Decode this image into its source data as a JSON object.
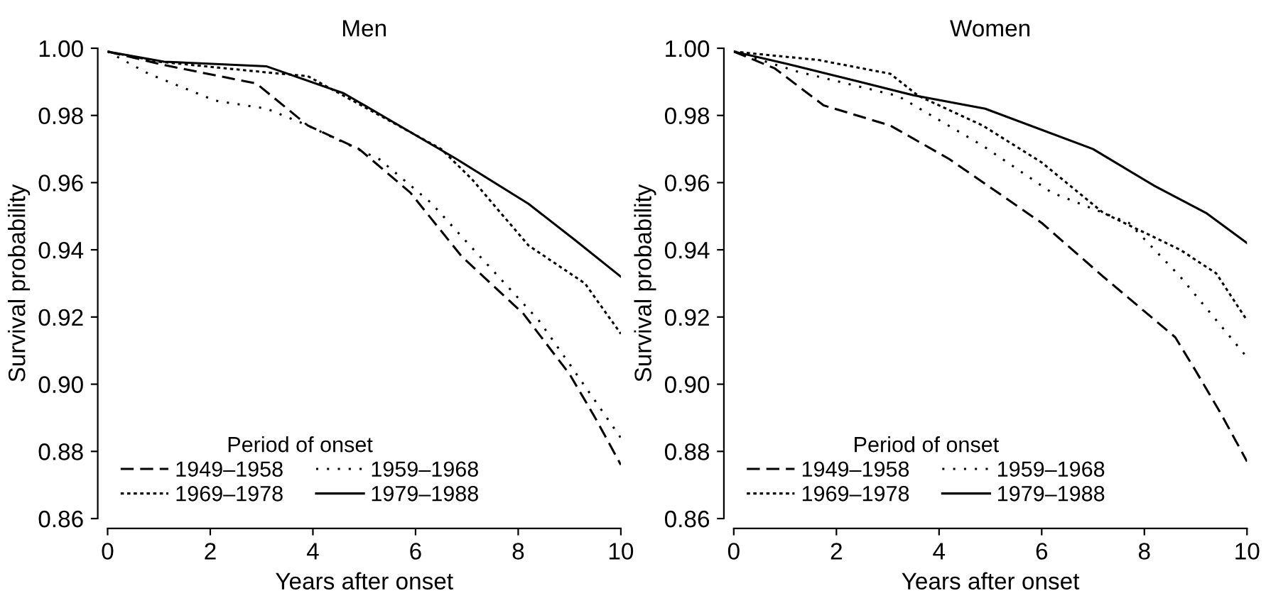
{
  "chart_data": [
    {
      "type": "line",
      "title": "Men",
      "xlabel": "Years after onset",
      "ylabel": "Survival probability",
      "legend_title": "Period of onset",
      "legend": "bottom left",
      "grid": false,
      "xlim": [
        0,
        10
      ],
      "ylim": [
        0.86,
        1.0
      ],
      "xticks": [
        0,
        2,
        4,
        6,
        8,
        10
      ],
      "yticks": [
        {
          "value": 0.86,
          "label": "0.86"
        },
        {
          "value": 0.88,
          "label": "0.88"
        },
        {
          "value": 0.9,
          "label": "0.90"
        },
        {
          "value": 0.92,
          "label": "0.92"
        },
        {
          "value": 0.94,
          "label": "0.94"
        },
        {
          "value": 0.96,
          "label": "0.96"
        },
        {
          "value": 0.98,
          "label": "0.98"
        },
        {
          "value": 1.0,
          "label": "1.00"
        }
      ],
      "series": [
        {
          "name": "1949–1958",
          "color": "#000000",
          "line_style": "dashed",
          "x": [
            0,
            1.1,
            2.9,
            3.9,
            4.9,
            5.9,
            6.9,
            8.1,
            8.7,
            9,
            9.5,
            10
          ],
          "values": [
            0.999,
            0.995,
            0.9895,
            0.977,
            0.97,
            0.957,
            0.938,
            0.921,
            0.909,
            0.903,
            0.89,
            0.876
          ]
        },
        {
          "name": "1959–1968",
          "color": "#000000",
          "line_style": "loosely dotted",
          "x": [
            0,
            0.8,
            2.1,
            3.1,
            3.9,
            5.3,
            6.3,
            7.1,
            8.4,
            9,
            10
          ],
          "values": [
            0.999,
            0.9924,
            0.9844,
            0.982,
            0.977,
            0.9669,
            0.954,
            0.9406,
            0.919,
            0.906,
            0.884
          ]
        },
        {
          "name": "1969–1978",
          "color": "#000000",
          "line_style": "dotted",
          "x": [
            0,
            1,
            3.1,
            3.9,
            6.5,
            7.1,
            8.2,
            9.3,
            10
          ],
          "values": [
            0.999,
            0.996,
            0.9928,
            0.9917,
            0.97,
            0.961,
            0.9413,
            0.93,
            0.915
          ]
        },
        {
          "name": "1979–1988",
          "color": "#000000",
          "line_style": "solid",
          "x": [
            0,
            1.1,
            3.1,
            4.6,
            6.8,
            8.2,
            9.1,
            10
          ],
          "values": [
            0.999,
            0.996,
            0.9946,
            0.9866,
            0.967,
            0.9537,
            0.943,
            0.932
          ]
        }
      ]
    },
    {
      "type": "line",
      "title": "Women",
      "xlabel": "Years after onset",
      "ylabel": "Survival probability",
      "legend_title": "Period of onset",
      "legend": "bottom left",
      "grid": false,
      "xlim": [
        0,
        10
      ],
      "ylim": [
        0.86,
        1.0
      ],
      "xticks": [
        0,
        2,
        4,
        6,
        8,
        10
      ],
      "yticks": [
        {
          "value": 0.86,
          "label": "0.86"
        },
        {
          "value": 0.88,
          "label": "0.88"
        },
        {
          "value": 0.9,
          "label": "0.90"
        },
        {
          "value": 0.92,
          "label": "0.92"
        },
        {
          "value": 0.94,
          "label": "0.94"
        },
        {
          "value": 0.96,
          "label": "0.96"
        },
        {
          "value": 0.98,
          "label": "0.98"
        },
        {
          "value": 1.0,
          "label": "1.00"
        }
      ],
      "series": [
        {
          "name": "1949–1958",
          "color": "#000000",
          "line_style": "dashed",
          "x": [
            0,
            0.8,
            1.75,
            3.05,
            4.2,
            6,
            7.2,
            8.6,
            9,
            9.5,
            10
          ],
          "values": [
            0.999,
            0.994,
            0.983,
            0.977,
            0.967,
            0.948,
            0.932,
            0.914,
            0.904,
            0.891,
            0.877
          ]
        },
        {
          "name": "1959–1968",
          "color": "#000000",
          "line_style": "loosely dotted",
          "x": [
            0,
            1.25,
            3.2,
            4.85,
            6.2,
            7.7,
            8.7,
            10
          ],
          "values": [
            0.999,
            0.993,
            0.9858,
            0.971,
            0.957,
            0.948,
            0.932,
            0.908
          ]
        },
        {
          "name": "1969–1978",
          "color": "#000000",
          "line_style": "dotted",
          "x": [
            0,
            1.65,
            3.05,
            3.6,
            4.85,
            6,
            7.2,
            8.7,
            9.4,
            10
          ],
          "values": [
            0.999,
            0.9965,
            0.9924,
            0.9858,
            0.977,
            0.966,
            0.951,
            0.94,
            0.933,
            0.919
          ]
        },
        {
          "name": "1979–1988",
          "color": "#000000",
          "line_style": "solid",
          "x": [
            0,
            1.05,
            2.45,
            3.5,
            4.9,
            7,
            8.2,
            9.2,
            10
          ],
          "values": [
            0.999,
            0.9953,
            0.99,
            0.986,
            0.982,
            0.97,
            0.959,
            0.951,
            0.942
          ]
        }
      ]
    }
  ]
}
